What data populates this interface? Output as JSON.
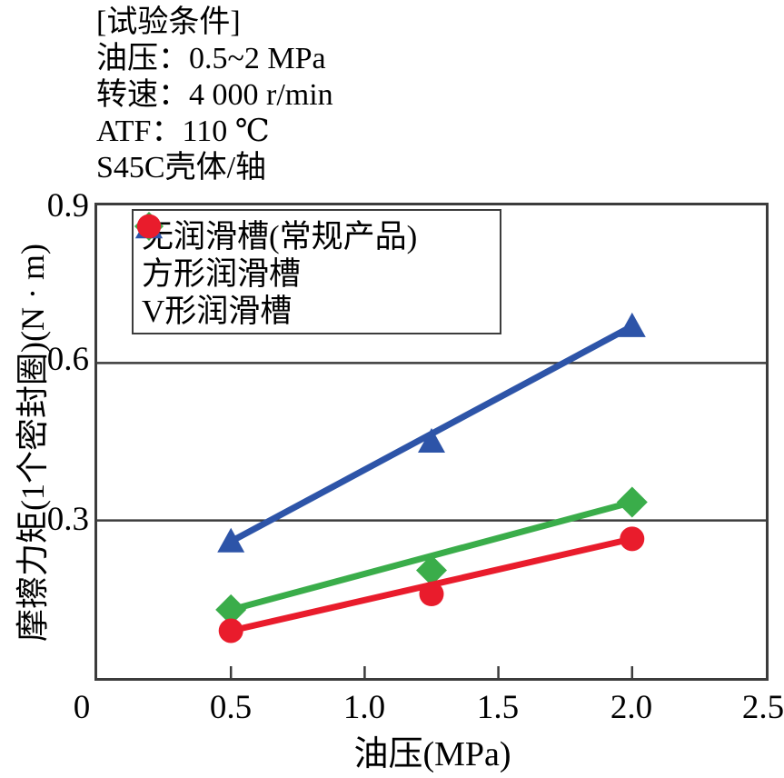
{
  "conditions": {
    "lines": [
      "[试验条件]",
      "油压：0.5~2 MPa",
      "转速：4 000 r/min",
      "ATF：110 ℃",
      "S45C壳体/轴"
    ]
  },
  "chart_data": {
    "type": "line",
    "title": "",
    "xlabel": "油压(MPa)",
    "ylabel": "摩擦力矩(1个密封圈)(N · m)",
    "xlim": [
      0,
      2.5
    ],
    "ylim": [
      0,
      0.9
    ],
    "x_tick_labels": [
      "0",
      "0.5",
      "1.0",
      "1.5",
      "2.0",
      "2.5"
    ],
    "x_tick_values": [
      0,
      0.5,
      1.0,
      1.5,
      2.0,
      2.5
    ],
    "y_tick_labels": [
      "0.3",
      "0.6",
      "0.9"
    ],
    "y_tick_values": [
      0.3,
      0.6,
      0.9
    ],
    "gridlines_y": [
      0.3,
      0.6
    ],
    "grid": "horizontal-only",
    "legend_position": "top-left-inside",
    "line_style": "straight-trend-through-endpoints",
    "x": [
      0.5,
      1.25,
      2.0
    ],
    "series": [
      {
        "name": "无润滑槽(常规产品)",
        "marker": "triangle",
        "color": "#2d54a8",
        "values": [
          0.26,
          0.45,
          0.67
        ]
      },
      {
        "name": "方形润滑槽",
        "marker": "diamond",
        "color": "#3aad4a",
        "values": [
          0.13,
          0.205,
          0.335
        ]
      },
      {
        "name": "V形润滑槽",
        "marker": "circle",
        "color": "#e91c2c",
        "values": [
          0.09,
          0.16,
          0.265
        ]
      }
    ]
  },
  "colors": {
    "axis": "#3c3c3c",
    "text": "#000000",
    "background": "#ffffff"
  }
}
